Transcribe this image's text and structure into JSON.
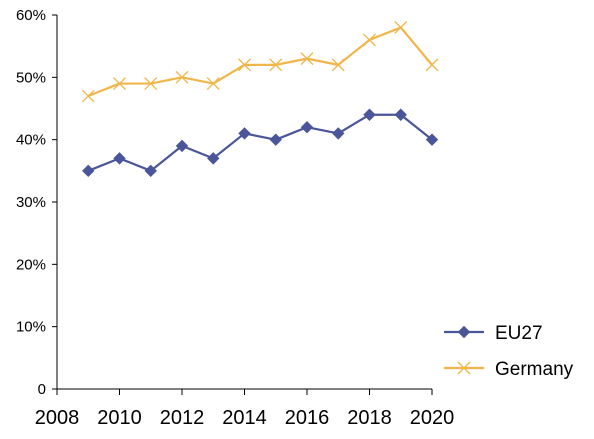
{
  "chart_data": {
    "type": "line",
    "x": [
      2009,
      2010,
      2011,
      2012,
      2013,
      2014,
      2015,
      2016,
      2017,
      2018,
      2019,
      2020
    ],
    "series": [
      {
        "name": "EU27",
        "values": [
          35,
          37,
          35,
          39,
          37,
          41,
          40,
          42,
          41,
          44,
          44,
          40
        ],
        "color": "#4a5699",
        "marker": "diamond"
      },
      {
        "name": "Germany",
        "values": [
          47,
          49,
          49,
          50,
          49,
          52,
          52,
          53,
          52,
          56,
          58,
          52
        ],
        "color": "#f0b64a",
        "marker": "x"
      }
    ],
    "xlim": [
      2008,
      2020
    ],
    "ylim": [
      0,
      60
    ],
    "xticks": [
      2008,
      2010,
      2012,
      2014,
      2016,
      2018,
      2020
    ],
    "xtick_labels": [
      "2008",
      "2010",
      "2012",
      "2014",
      "2016",
      "2018",
      "2020"
    ],
    "yticks": [
      0,
      10,
      20,
      30,
      40,
      50,
      60
    ],
    "ytick_labels": [
      "0",
      "10%",
      "20%",
      "30%",
      "40%",
      "50%",
      "60%"
    ],
    "grid": false,
    "legend_position": "bottom-right"
  }
}
